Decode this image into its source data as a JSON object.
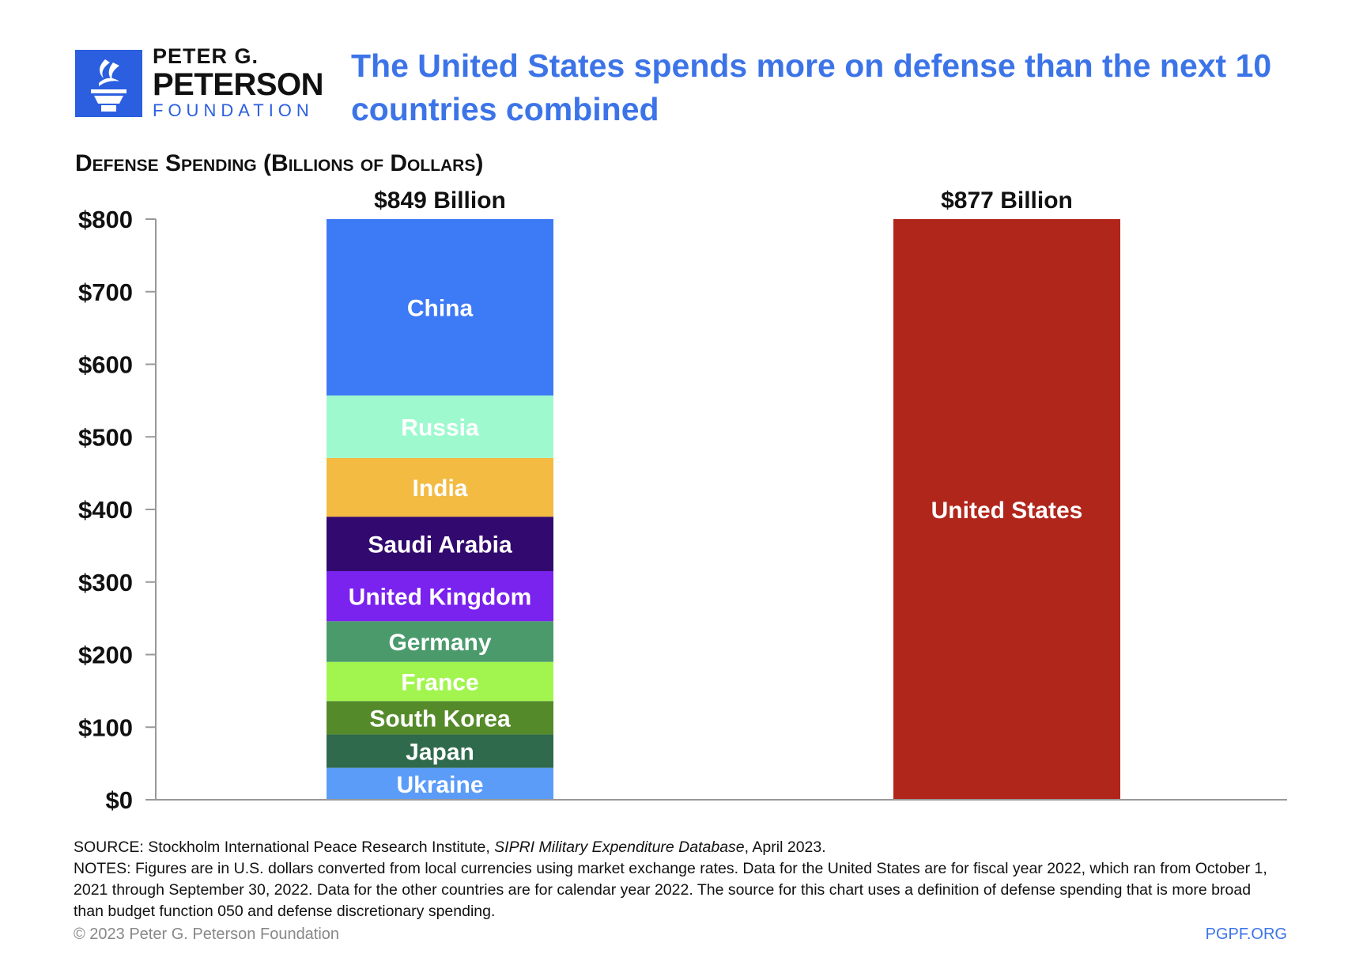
{
  "logo": {
    "line1": "PETER G.",
    "line2": "PETERSON",
    "line3": "FOUNDATION",
    "brand_color": "#2b5fe0"
  },
  "title": "The United States spends more on defense than the next 10 countries combined",
  "footer": {
    "source_prefix": "SOURCE: Stockholm International Peace Research Institute, ",
    "source_italic": "SIPRI Military Expenditure Database",
    "source_suffix": ", April 2023.",
    "notes": "NOTES: Figures are in U.S. dollars converted from local currencies using market exchange rates. Data for the United States are for fiscal year 2022, which ran from October 1, 2021 through September 30, 2022. Data for the other countries are for calendar year 2022. The source for this chart uses a definition of defense spending that is more broad than budget function 050 and defense discretionary spending.",
    "copyright": "© 2023 Peter G. Peterson Foundation",
    "site": "PGPF.ORG"
  },
  "chart_data": {
    "type": "bar",
    "stacked": true,
    "title": "Defense Spending (Billions of Dollars)",
    "ylim": [
      0,
      800
    ],
    "y_ticks": [
      0,
      100,
      200,
      300,
      400,
      500,
      600,
      700,
      800
    ],
    "y_tick_labels": [
      "$0",
      "$100",
      "$200",
      "$300",
      "$400",
      "$500",
      "$600",
      "$700",
      "$800"
    ],
    "grid": false,
    "bars": [
      {
        "total_label": "$849 Billion",
        "segments": [
          {
            "name": "Ukraine",
            "value": 44,
            "color": "#5b9cf8"
          },
          {
            "name": "Japan",
            "value": 46,
            "color": "#2f6a4c"
          },
          {
            "name": "South Korea",
            "value": 46,
            "color": "#558a2a"
          },
          {
            "name": "France",
            "value": 54,
            "color": "#a2f54f"
          },
          {
            "name": "Germany",
            "value": 56,
            "color": "#4a9a6c"
          },
          {
            "name": "United Kingdom",
            "value": 69,
            "color": "#7a22ee"
          },
          {
            "name": "Saudi Arabia",
            "value": 75,
            "color": "#32096e"
          },
          {
            "name": "India",
            "value": 81,
            "color": "#f3bb42"
          },
          {
            "name": "Russia",
            "value": 86,
            "color": "#9ef9cf"
          },
          {
            "name": "China",
            "value": 292,
            "color": "#3d7af5"
          }
        ]
      },
      {
        "total_label": "$877 Billion",
        "segments": [
          {
            "name": "United States",
            "value": 877,
            "color": "#b1261b"
          }
        ]
      }
    ]
  }
}
